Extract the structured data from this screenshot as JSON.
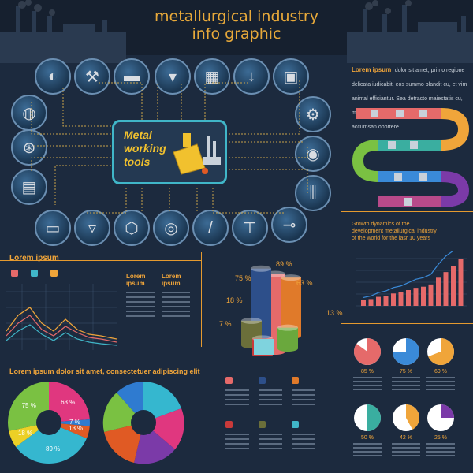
{
  "header": {
    "title_line1": "metallurgical industry",
    "title_line2": "info graphic"
  },
  "center": {
    "label_line1": "Metal",
    "label_line2": "working",
    "label_line3": "tools"
  },
  "tool_icons": [
    {
      "name": "welding-mask-icon",
      "glyph": "◐"
    },
    {
      "name": "hammer-icon",
      "glyph": "⚒"
    },
    {
      "name": "anvil-icon",
      "glyph": "▬"
    },
    {
      "name": "bolt-icon",
      "glyph": "▾"
    },
    {
      "name": "factory-icon",
      "glyph": "▦"
    },
    {
      "name": "nail-icon",
      "glyph": "↓"
    },
    {
      "name": "press-icon",
      "glyph": "▣"
    },
    {
      "name": "wrench-icon",
      "glyph": "⚙"
    },
    {
      "name": "grinder-icon",
      "glyph": "◉"
    },
    {
      "name": "chisel-icon",
      "glyph": "⫼"
    },
    {
      "name": "drill-icon",
      "glyph": "⊸"
    },
    {
      "name": "spray-gun-icon",
      "glyph": "⊤"
    },
    {
      "name": "screwdriver-icon",
      "glyph": "/"
    },
    {
      "name": "bench-grinder-icon",
      "glyph": "◎"
    },
    {
      "name": "nut-icon",
      "glyph": "⬡"
    },
    {
      "name": "screw-icon",
      "glyph": "▿"
    },
    {
      "name": "lathe-icon",
      "glyph": "▭"
    },
    {
      "name": "ore-cart-icon",
      "glyph": "▤"
    },
    {
      "name": "bearing-icon",
      "glyph": "⊛"
    },
    {
      "name": "coil-icon",
      "glyph": "◍"
    },
    {
      "name": "screw-left-icon",
      "glyph": "▽"
    }
  ],
  "top_right": {
    "heading": "Lorem ipsum",
    "text": "dolor sit amet, pri no regione delicata iudicabit, eos summo blandit cu, et vim animal efficiantur. Sea detracto maiestatis cu, mel lorem integre phaedrum no, vel eu accumsan oportere."
  },
  "lorem_ipsum_left": {
    "heading": "Lorem ipsum",
    "col1_head": "Lorem\nipsum",
    "col2_head": "Lorem\nipsum"
  },
  "growth": {
    "text": "Growth dynamics of the development metallurgical industry of the world for the lasr 10 years"
  },
  "cylinders": [
    {
      "label": "89 %",
      "value": 89,
      "color": "#e56a6a"
    },
    {
      "label": "75 %",
      "value": 75,
      "color": "#2d4f8a"
    },
    {
      "label": "63 %",
      "value": 63,
      "color": "#e07a2a"
    },
    {
      "label": "18 %",
      "value": 18,
      "color": "#6b6f3a"
    },
    {
      "label": "13 %",
      "value": 13,
      "color": "#6aa83d"
    },
    {
      "label": "7 %",
      "value": 7,
      "color": "#c93a3a"
    }
  ],
  "bottom_left": {
    "heading": "Lorem ipsum dolor sit amet, consectetuer adipiscing elit"
  },
  "donut": [
    {
      "label": "63 %",
      "value": 63,
      "color": "#e0377f"
    },
    {
      "label": "7 %",
      "value": 7,
      "color": "#2f7bd0"
    },
    {
      "label": "13 %",
      "value": 13,
      "color": "#e05a24"
    },
    {
      "label": "89 %",
      "value": 89,
      "color": "#35b7cf"
    },
    {
      "label": "18 %",
      "value": 18,
      "color": "#ecd026"
    },
    {
      "label": "75 %",
      "value": 75,
      "color": "#7ac142"
    }
  ],
  "pies": [
    {
      "label": "85 %",
      "value": 85,
      "color": "#e56a6a"
    },
    {
      "label": "75 %",
      "value": 75,
      "color": "#3a8ad8"
    },
    {
      "label": "69 %",
      "value": 69,
      "color": "#f0a53a"
    },
    {
      "label": "50 %",
      "value": 50,
      "color": "#3aaea0"
    },
    {
      "label": "42 %",
      "value": 42,
      "color": "#f0a53a"
    },
    {
      "label": "25 %",
      "value": 25,
      "color": "#7b3aa8"
    }
  ],
  "bar_chart": {
    "values": [
      5,
      6,
      8,
      9,
      11,
      12,
      14,
      16,
      17,
      19,
      25,
      30,
      35,
      42
    ]
  },
  "colors": {
    "accent": "#e59a2f",
    "background": "#1c2a3e",
    "cyan": "#40b6c8"
  }
}
